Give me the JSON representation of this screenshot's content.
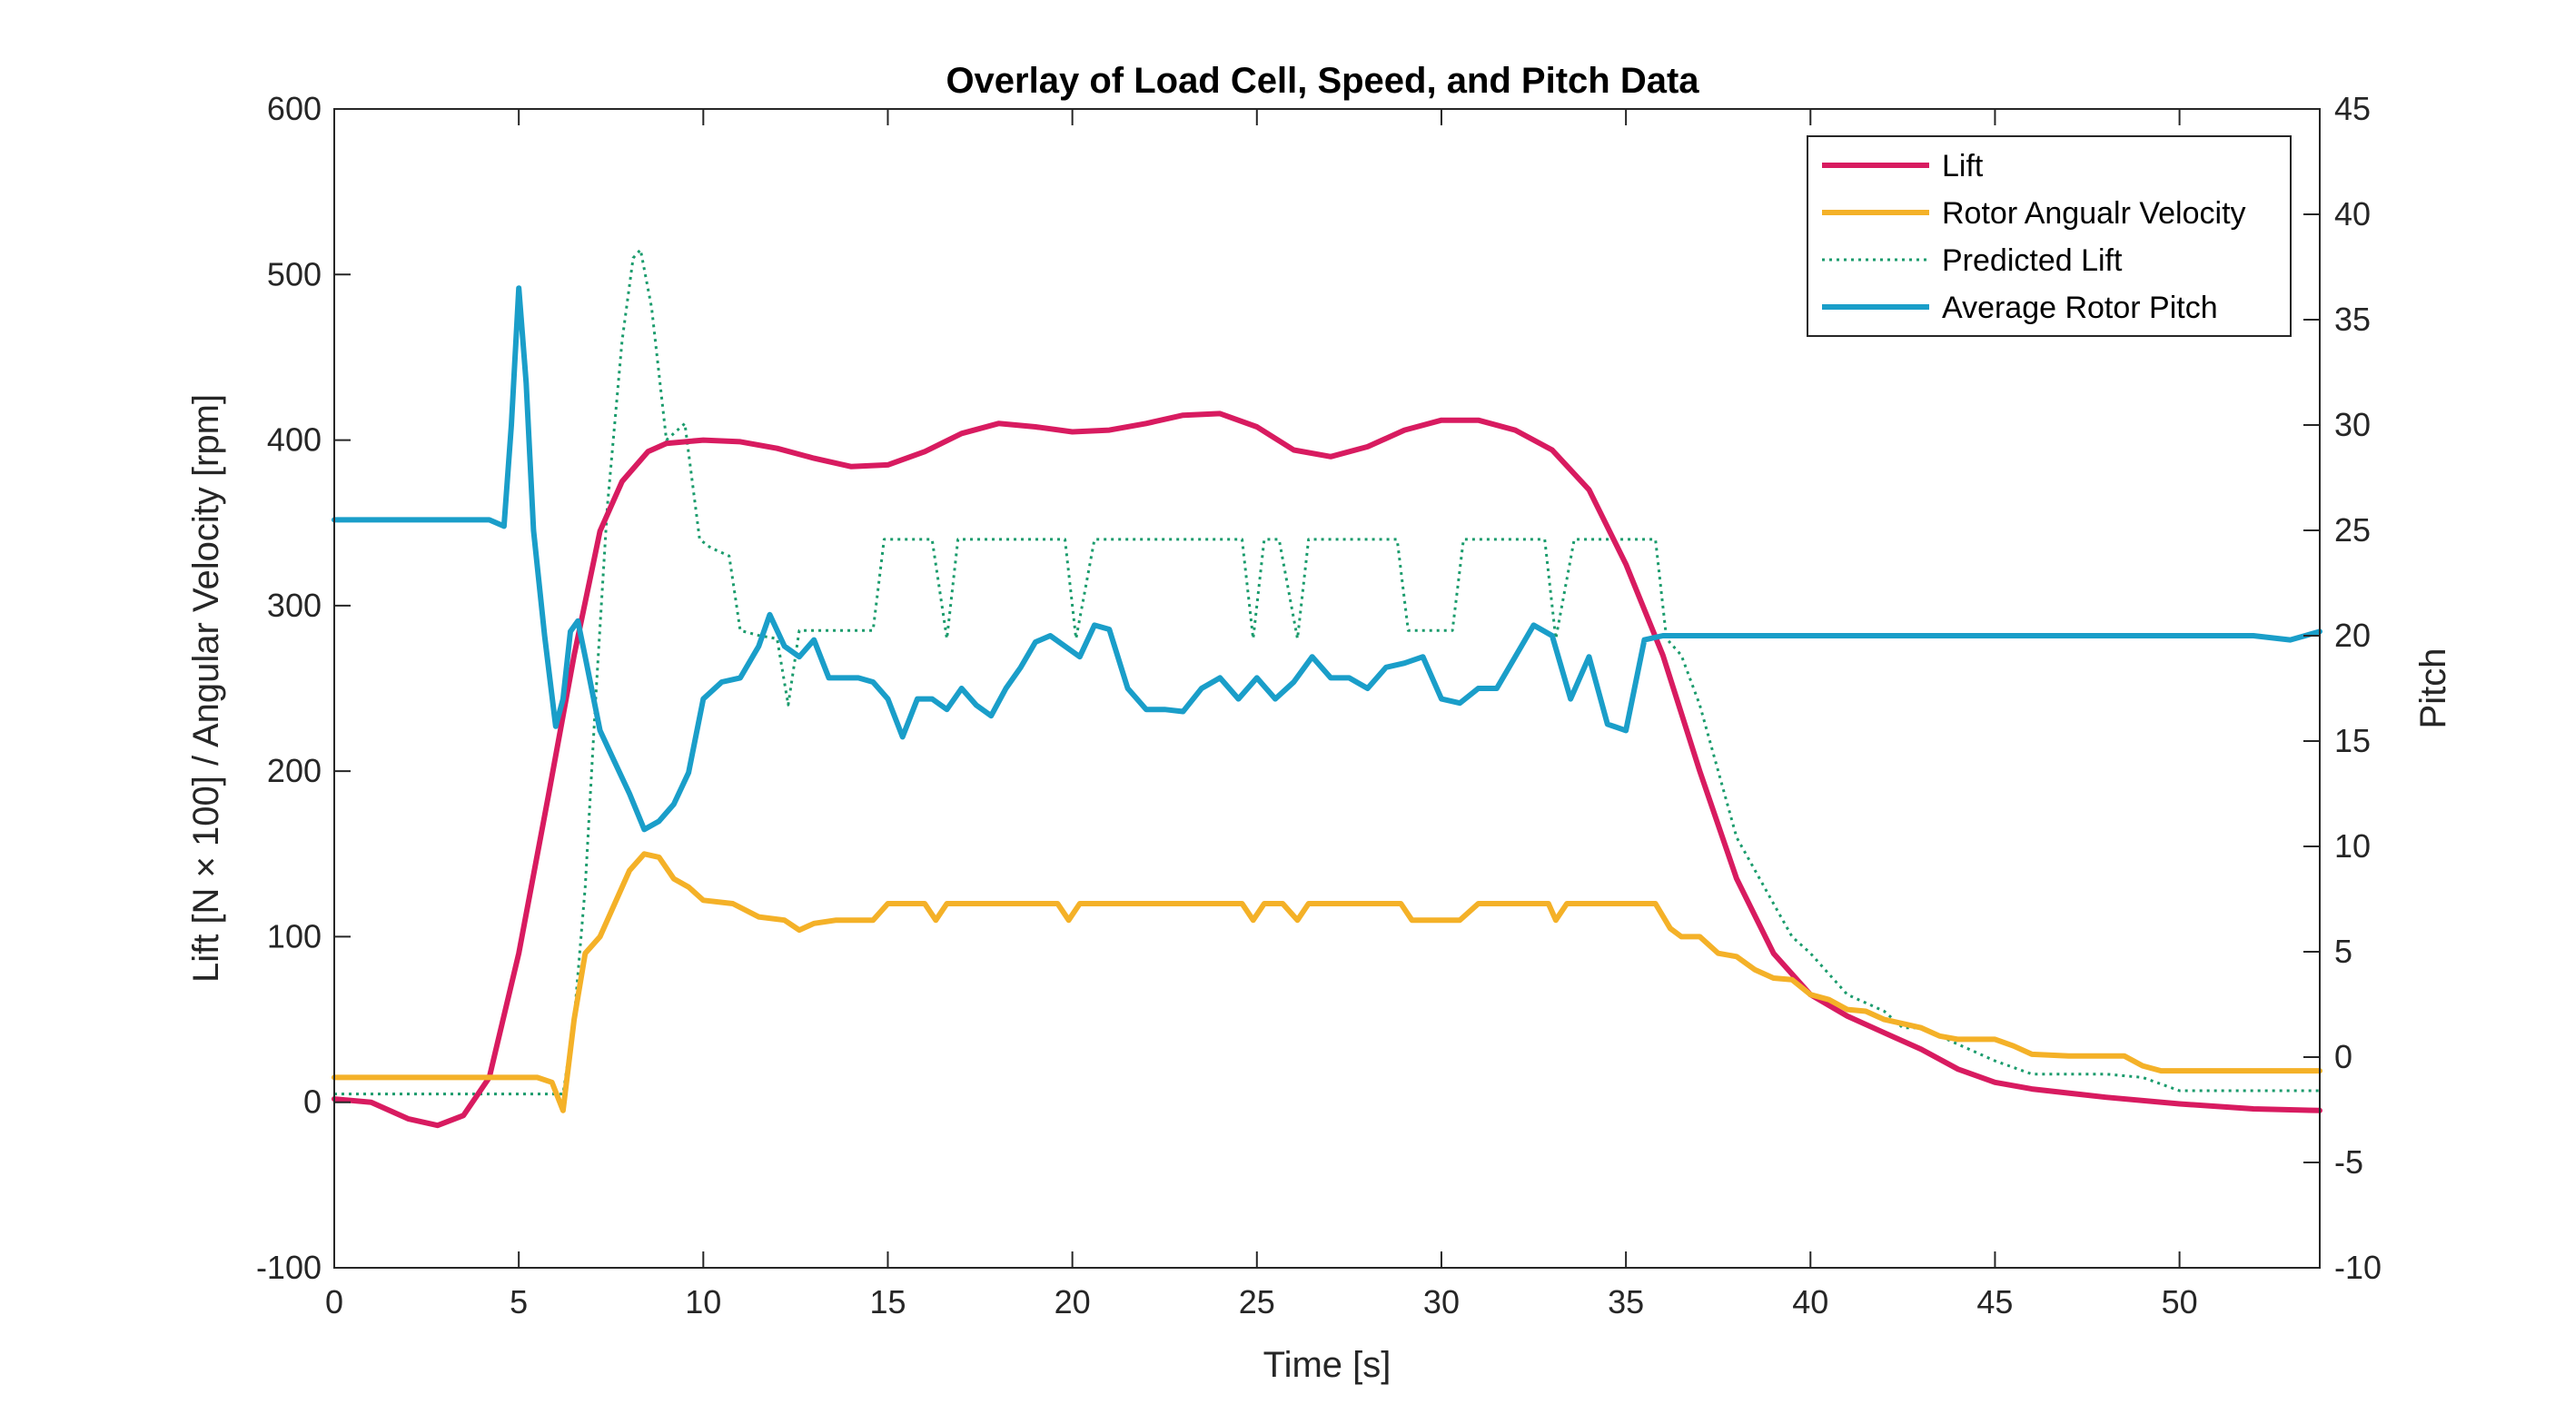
{
  "chart_data": {
    "type": "line",
    "title": "Overlay of Load Cell, Speed, and Pitch Data",
    "xlabel": "Time [s]",
    "ylabel_left": "Lift [N × 100] / Angular Velocity [rpm]",
    "ylabel_right": "Pitch",
    "xlim": [
      0,
      53.8
    ],
    "ylim_left": [
      -100,
      600
    ],
    "ylim_right": [
      -10,
      45
    ],
    "x_ticks": [
      "0",
      "5",
      "10",
      "15",
      "20",
      "25",
      "30",
      "35",
      "40",
      "45",
      "50"
    ],
    "y_left_ticks": [
      "-100",
      "0",
      "100",
      "200",
      "300",
      "400",
      "500",
      "600"
    ],
    "y_right_ticks": [
      "-10",
      "-5",
      "0",
      "5",
      "10",
      "15",
      "20",
      "25",
      "30",
      "35",
      "40",
      "45"
    ],
    "grid": false,
    "legend_position": "top-right",
    "series": [
      {
        "name": "Lift",
        "axis": "left",
        "color": "#d81b60",
        "style": "solid",
        "x": [
          0,
          1,
          2,
          2.8,
          3.5,
          4.2,
          5,
          5.8,
          6.5,
          7.2,
          7.8,
          8.5,
          9,
          10,
          11,
          12,
          13,
          14,
          15,
          16,
          17,
          18,
          19,
          20,
          21,
          22,
          23,
          24,
          25,
          26,
          27,
          28,
          29,
          30,
          31,
          32,
          33,
          34,
          35,
          36,
          37,
          38,
          39,
          40,
          41,
          42,
          43,
          44,
          45,
          46,
          48,
          50,
          52,
          53.8
        ],
        "values": [
          2,
          0,
          -10,
          -14,
          -8,
          15,
          90,
          185,
          270,
          345,
          375,
          393,
          398,
          400,
          399,
          395,
          389,
          384,
          385,
          393,
          404,
          410,
          408,
          405,
          406,
          410,
          415,
          416,
          408,
          394,
          390,
          396,
          406,
          412,
          412,
          406,
          394,
          370,
          325,
          270,
          200,
          135,
          90,
          65,
          52,
          42,
          32,
          20,
          12,
          8,
          3,
          -1,
          -4,
          -5
        ]
      },
      {
        "name": "Rotor Angualr Velocity",
        "axis": "left",
        "color": "#f4b128",
        "style": "solid",
        "x": [
          0,
          5.5,
          5.9,
          6.2,
          6.5,
          6.8,
          7.2,
          7.6,
          8,
          8.4,
          8.8,
          9.2,
          9.6,
          10,
          10.8,
          11.5,
          12.2,
          12.6,
          13,
          13.6,
          14,
          14.6,
          15,
          15.6,
          16,
          16.3,
          16.6,
          17,
          17.6,
          18.2,
          19,
          19.6,
          19.9,
          20.2,
          21,
          22,
          23,
          24.6,
          24.9,
          25.2,
          25.7,
          26.1,
          26.4,
          26.7,
          27.2,
          28.2,
          28.9,
          29.2,
          29.6,
          30.5,
          31,
          32,
          32.9,
          33.1,
          33.4,
          34,
          35,
          35.8,
          36.2,
          36.5,
          37,
          37.5,
          38,
          38.5,
          39,
          39.5,
          40,
          40.5,
          41,
          41.5,
          42,
          43,
          43.5,
          44,
          45,
          45.5,
          46,
          47,
          48.5,
          49,
          49.5,
          50,
          52,
          53.8
        ],
        "values": [
          15,
          15,
          12,
          -5,
          50,
          90,
          100,
          120,
          140,
          150,
          148,
          135,
          130,
          122,
          120,
          112,
          110,
          104,
          108,
          110,
          110,
          110,
          120,
          120,
          120,
          110,
          120,
          120,
          120,
          120,
          120,
          120,
          110,
          120,
          120,
          120,
          120,
          120,
          110,
          120,
          120,
          110,
          120,
          120,
          120,
          120,
          120,
          110,
          110,
          110,
          120,
          120,
          120,
          110,
          120,
          120,
          120,
          120,
          105,
          100,
          100,
          90,
          88,
          80,
          75,
          74,
          65,
          62,
          56,
          55,
          50,
          45,
          40,
          38,
          38,
          34,
          29,
          28,
          28,
          22,
          19,
          19,
          19,
          19
        ]
      },
      {
        "name": "Predicted Lift",
        "axis": "left",
        "color": "#1a9b6c",
        "style": "dotted",
        "x": [
          0,
          5.8,
          6.2,
          6.5,
          6.8,
          7.1,
          7.4,
          7.8,
          8.1,
          8.3,
          8.6,
          9,
          9.5,
          9.9,
          10.2,
          10.7,
          11,
          11.5,
          12,
          12.3,
          12.6,
          13,
          14,
          14.6,
          14.9,
          15.5,
          16.2,
          16.6,
          16.9,
          17.3,
          18,
          19,
          19.8,
          20.1,
          20.6,
          22,
          24,
          24.6,
          24.9,
          25.2,
          25.6,
          26.1,
          26.4,
          26.8,
          28,
          28.8,
          29.1,
          29.5,
          30.3,
          30.6,
          31,
          32.3,
          32.8,
          33.1,
          33.6,
          35,
          35.8,
          36.1,
          36.5,
          37,
          37.5,
          38,
          38.5,
          39,
          39.5,
          40,
          41,
          41.5,
          42,
          42.5,
          43,
          44,
          45,
          46,
          47,
          48,
          49,
          50,
          52,
          53.8
        ],
        "values": [
          5,
          5,
          5,
          50,
          130,
          250,
          360,
          460,
          510,
          515,
          480,
          400,
          410,
          340,
          335,
          330,
          285,
          282,
          280,
          240,
          285,
          285,
          285,
          285,
          340,
          340,
          340,
          280,
          340,
          340,
          340,
          340,
          340,
          280,
          340,
          340,
          340,
          340,
          280,
          340,
          340,
          280,
          340,
          340,
          340,
          340,
          285,
          285,
          285,
          340,
          340,
          340,
          340,
          280,
          340,
          340,
          340,
          280,
          270,
          240,
          200,
          160,
          140,
          120,
          100,
          90,
          65,
          60,
          55,
          45,
          45,
          35,
          25,
          17,
          17,
          17,
          15,
          7,
          7,
          7
        ]
      },
      {
        "name": "Average Rotor Pitch",
        "axis": "right",
        "color": "#1a9ec9",
        "style": "solid",
        "x": [
          0,
          4.2,
          4.6,
          4.8,
          5,
          5.2,
          5.4,
          5.7,
          6,
          6.2,
          6.4,
          6.6,
          6.8,
          7.2,
          7.6,
          8,
          8.4,
          8.8,
          9.2,
          9.6,
          10,
          10.5,
          11,
          11.5,
          11.8,
          12.2,
          12.6,
          13,
          13.4,
          13.8,
          14.2,
          14.6,
          15,
          15.4,
          15.8,
          16.2,
          16.6,
          17,
          17.4,
          17.8,
          18.2,
          18.6,
          19,
          19.4,
          19.8,
          20.2,
          20.6,
          21,
          21.5,
          22,
          22.5,
          23,
          23.5,
          24,
          24.5,
          25,
          25.5,
          26,
          26.5,
          27,
          27.5,
          28,
          28.5,
          29,
          29.5,
          30,
          30.5,
          31,
          31.5,
          32,
          32.5,
          33,
          33.5,
          34,
          34.5,
          35,
          35.5,
          36,
          37,
          38,
          39,
          40,
          41,
          42,
          43,
          44,
          45,
          46,
          47,
          48,
          49,
          50,
          51,
          52,
          53,
          53.8
        ],
        "values": [
          25.5,
          25.5,
          25.2,
          30,
          36.5,
          32,
          25,
          20,
          15.7,
          17,
          20.2,
          20.7,
          19,
          15.5,
          14,
          12.5,
          10.8,
          11.2,
          12,
          13.5,
          17,
          17.8,
          18,
          19.5,
          21,
          19.5,
          19,
          19.8,
          18,
          18,
          18,
          17.8,
          17,
          15.2,
          17,
          17,
          16.5,
          17.5,
          16.7,
          16.2,
          17.5,
          18.5,
          19.7,
          20,
          19.5,
          19,
          20.5,
          20.3,
          17.5,
          16.5,
          16.5,
          16.4,
          17.5,
          18,
          17,
          18,
          17,
          17.8,
          19,
          18,
          18,
          17.5,
          18.5,
          18.7,
          19,
          17,
          16.8,
          17.5,
          17.5,
          19,
          20.5,
          20,
          17,
          19,
          15.8,
          15.5,
          19.8,
          20,
          20,
          20,
          20,
          20,
          20,
          20,
          20,
          20,
          20,
          20,
          20,
          20,
          20,
          20,
          20,
          20,
          19.8,
          20.2
        ]
      }
    ]
  }
}
